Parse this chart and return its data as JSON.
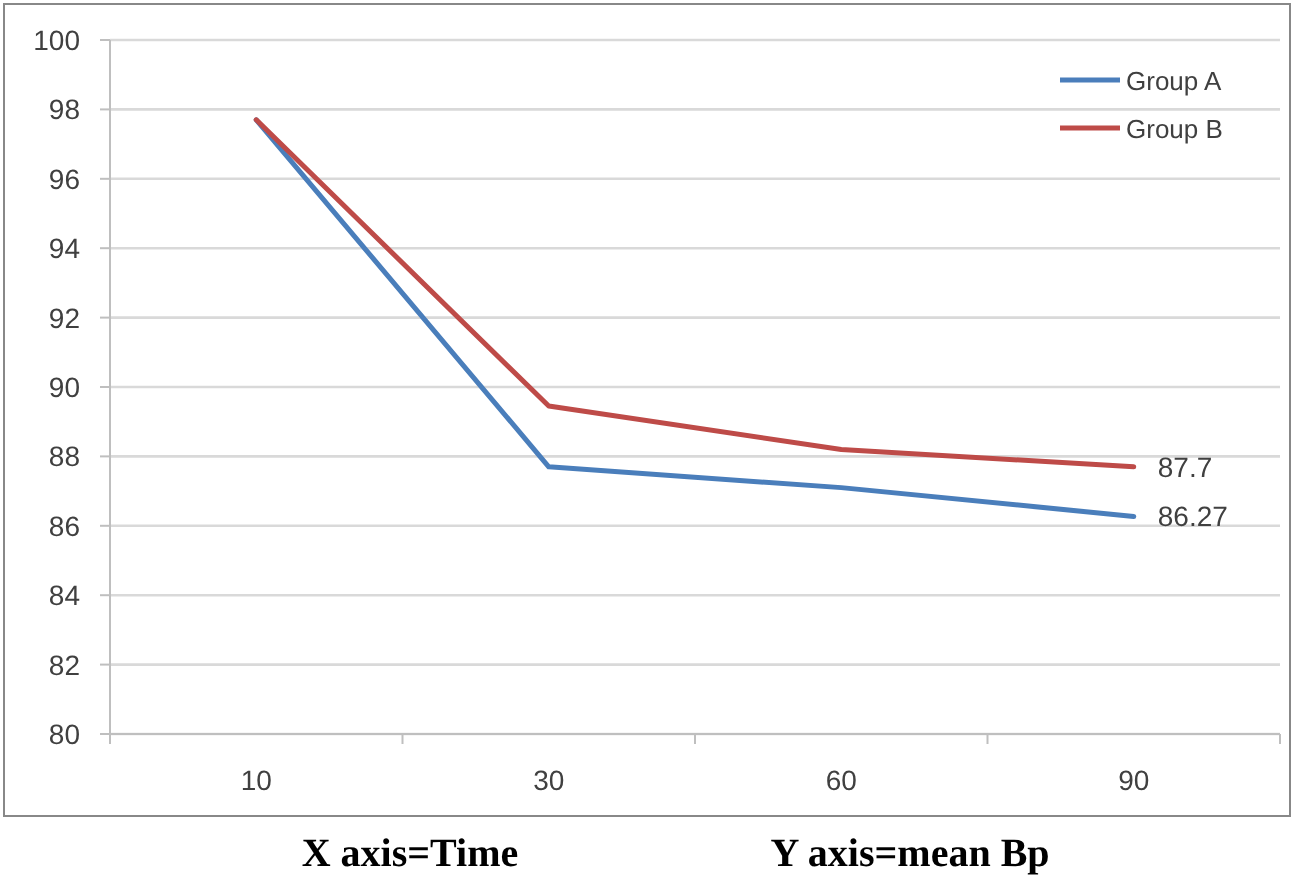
{
  "chart_data": {
    "type": "line",
    "categories": [
      "10",
      "30",
      "60",
      "90"
    ],
    "series": [
      {
        "name": "Group A",
        "color": "#4a7ebb",
        "values": [
          97.7,
          87.7,
          87.1,
          86.27
        ],
        "value_labels": [
          null,
          null,
          null,
          "86.27"
        ]
      },
      {
        "name": "Group B",
        "color": "#be4b48",
        "values": [
          97.7,
          89.45,
          88.2,
          87.7
        ],
        "value_labels": [
          null,
          null,
          null,
          "87.7"
        ]
      }
    ],
    "ylim": [
      80,
      100
    ],
    "yticks": [
      80,
      82,
      84,
      86,
      88,
      90,
      92,
      94,
      96,
      98,
      100
    ],
    "grid": "y",
    "legend": "top right",
    "marker": "none",
    "line_style": "solid",
    "annotations": [
      "X axis=Time",
      "Y axis=mean Bp"
    ]
  }
}
